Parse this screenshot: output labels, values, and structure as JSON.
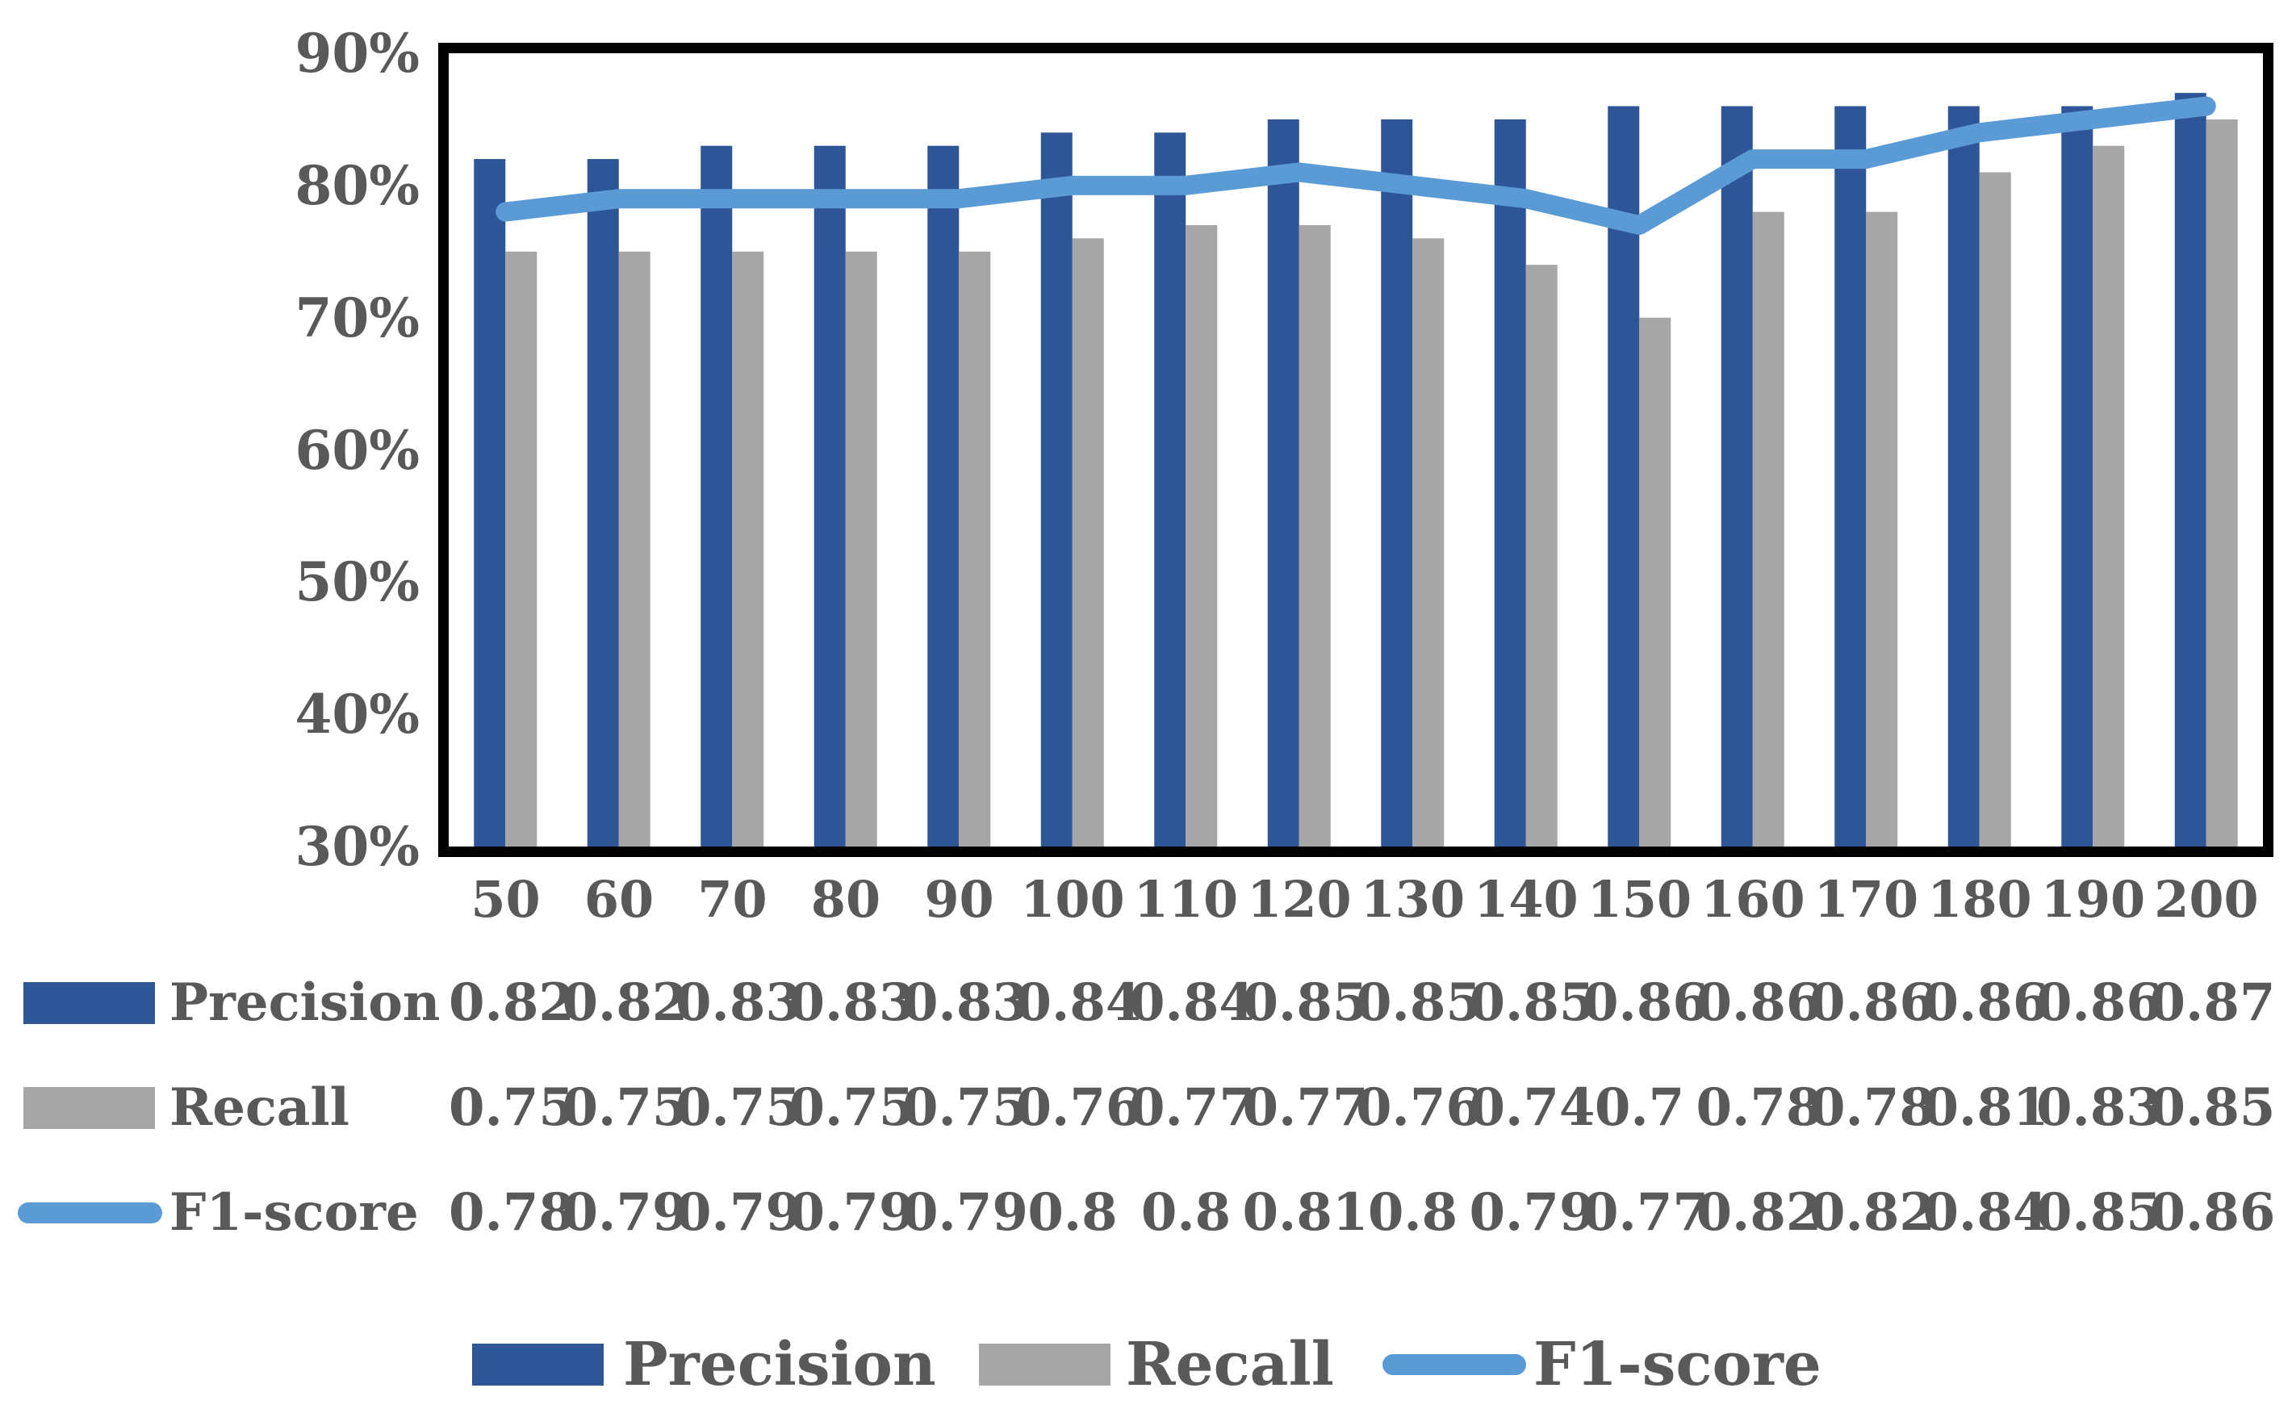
{
  "chart_data": {
    "type": "bar",
    "subtype": "grouped-bars-with-line-overlay",
    "title": "",
    "xlabel": "",
    "ylabel": "",
    "categories": [
      "50",
      "60",
      "70",
      "80",
      "90",
      "100",
      "110",
      "120",
      "130",
      "140",
      "150",
      "160",
      "170",
      "180",
      "190",
      "200"
    ],
    "ylim": [
      0.3,
      0.9
    ],
    "grid": false,
    "legend_position": "bottom",
    "y_ticks": [
      {
        "label": "90%",
        "value": 0.9
      },
      {
        "label": "80%",
        "value": 0.8
      },
      {
        "label": "70%",
        "value": 0.7
      },
      {
        "label": "60%",
        "value": 0.6
      },
      {
        "label": "50%",
        "value": 0.5
      },
      {
        "label": "40%",
        "value": 0.4
      },
      {
        "label": "30%",
        "value": 0.3
      }
    ],
    "series": [
      {
        "name": "Precision",
        "type": "bar",
        "color": "#2E5596",
        "values": [
          0.82,
          0.82,
          0.83,
          0.83,
          0.83,
          0.84,
          0.84,
          0.85,
          0.85,
          0.85,
          0.86,
          0.86,
          0.86,
          0.86,
          0.86,
          0.87
        ],
        "display": [
          "0.82",
          "0.82",
          "0.83",
          "0.83",
          "0.83",
          "0.84",
          "0.84",
          "0.85",
          "0.85",
          "0.85",
          "0.86",
          "0.86",
          "0.86",
          "0.86",
          "0.86",
          "0.87"
        ]
      },
      {
        "name": "Recall",
        "type": "bar",
        "color": "#A6A6A6",
        "values": [
          0.75,
          0.75,
          0.75,
          0.75,
          0.75,
          0.76,
          0.77,
          0.77,
          0.76,
          0.74,
          0.7,
          0.78,
          0.78,
          0.81,
          0.83,
          0.85
        ],
        "display": [
          "0.75",
          "0.75",
          "0.75",
          "0.75",
          "0.75",
          "0.76",
          "0.77",
          "0.77",
          "0.76",
          "0.74",
          "0.7",
          "0.78",
          "0.78",
          "0.81",
          "0.83",
          "0.85"
        ]
      },
      {
        "name": "F1-score",
        "type": "line",
        "color": "#5B9BD5",
        "values": [
          0.78,
          0.79,
          0.79,
          0.79,
          0.79,
          0.8,
          0.8,
          0.81,
          0.8,
          0.79,
          0.77,
          0.82,
          0.82,
          0.84,
          0.85,
          0.86
        ],
        "display": [
          "0.78",
          "0.79",
          "0.79",
          "0.79",
          "0.79",
          "0.8",
          "0.8",
          "0.81",
          "0.8",
          "0.79",
          "0.77",
          "0.82",
          "0.82",
          "0.84",
          "0.85",
          "0.86"
        ]
      }
    ],
    "colors": {
      "text": "#595959",
      "plot_border": "#000000",
      "background": "#ffffff"
    }
  }
}
